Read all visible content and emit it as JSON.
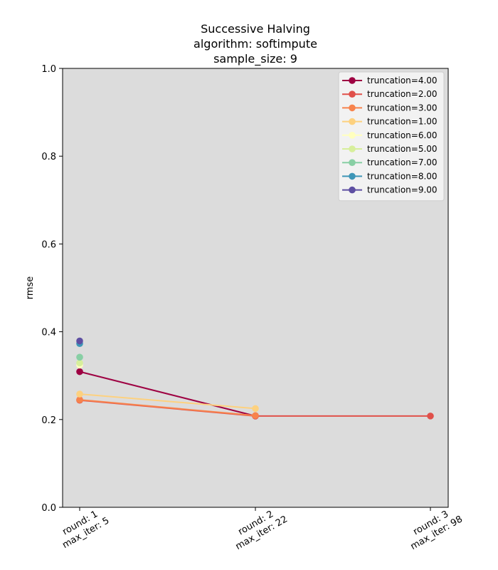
{
  "chart_data": {
    "type": "line",
    "title": [
      "Successive Halving",
      "algorithm: softimpute",
      "sample_size: 9"
    ],
    "ylabel": "rmse",
    "xlabel": "",
    "ylim": [
      0.0,
      1.0
    ],
    "yticks": [
      "0.0",
      "0.2",
      "0.4",
      "0.6",
      "0.8",
      "1.0"
    ],
    "categories": [
      [
        "round: 1",
        "max_iter: 5"
      ],
      [
        "round: 2",
        "max_iter: 22"
      ],
      [
        "round: 3",
        "max_iter: 98"
      ]
    ],
    "grid": false,
    "legend_position": "top-right",
    "background_color": "#dcdcdc",
    "series": [
      {
        "name": "truncation=4.00",
        "color": "#9e0142",
        "values": [
          0.309,
          0.208,
          null
        ]
      },
      {
        "name": "truncation=2.00",
        "color": "#e0504a",
        "values": [
          0.244,
          0.208,
          0.208
        ]
      },
      {
        "name": "truncation=3.00",
        "color": "#f7834d",
        "values": [
          0.245,
          0.209,
          null
        ]
      },
      {
        "name": "truncation=1.00",
        "color": "#fdd17f",
        "values": [
          0.258,
          0.225,
          null
        ]
      },
      {
        "name": "truncation=6.00",
        "color": "#ffffbe",
        "values": [
          0.324,
          null,
          null
        ]
      },
      {
        "name": "truncation=5.00",
        "color": "#d7ef9b",
        "values": [
          0.329,
          null,
          null
        ]
      },
      {
        "name": "truncation=7.00",
        "color": "#88cfa4",
        "values": [
          0.342,
          null,
          null
        ]
      },
      {
        "name": "truncation=8.00",
        "color": "#3e96b7",
        "values": [
          0.373,
          null,
          null
        ]
      },
      {
        "name": "truncation=9.00",
        "color": "#5e4fa2",
        "values": [
          0.379,
          null,
          null
        ]
      }
    ]
  }
}
